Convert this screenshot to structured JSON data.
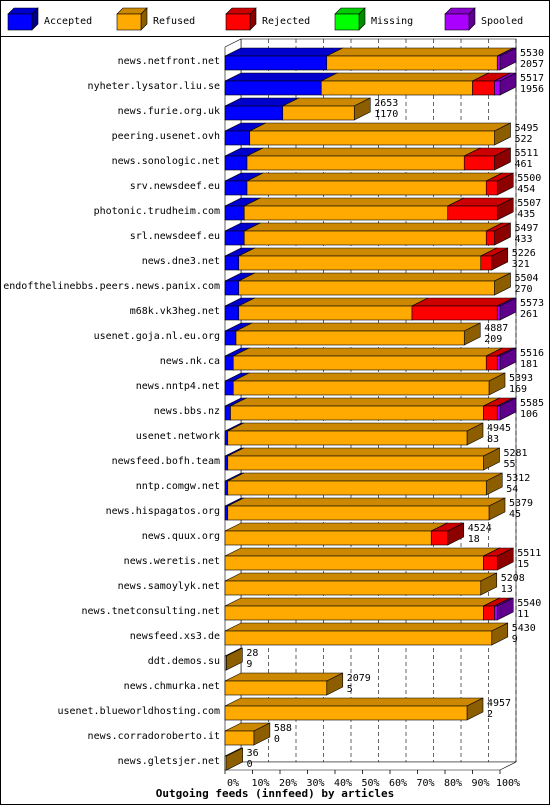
{
  "chart_data": {
    "type": "bar",
    "title": "Outgoing feeds (innfeed) by articles",
    "legend": [
      {
        "name": "Accepted",
        "color": "#0000ff"
      },
      {
        "name": "Refused",
        "color": "#ffaa00"
      },
      {
        "name": "Rejected",
        "color": "#ff0000"
      },
      {
        "name": "Missing",
        "color": "#00ff00"
      },
      {
        "name": "Spooled",
        "color": "#aa00ff"
      }
    ],
    "x_ticks": [
      "0%",
      "10%",
      "20%",
      "30%",
      "40%",
      "50%",
      "60%",
      "70%",
      "80%",
      "90%",
      "100%"
    ],
    "rows": [
      {
        "name": "news.netfront.net",
        "offered": "5530",
        "accepted": "2057",
        "acc": 37,
        "ref": 62,
        "rej": 0,
        "spo": 1
      },
      {
        "name": "nyheter.lysator.liu.se",
        "offered": "5517",
        "accepted": "1956",
        "acc": 35,
        "ref": 55,
        "rej": 8,
        "spo": 2
      },
      {
        "name": "news.furie.org.uk",
        "offered": "2653",
        "accepted": "1170",
        "acc": 21,
        "ref": 26,
        "rej": 0,
        "spo": 0
      },
      {
        "name": "peering.usenet.ovh",
        "offered": "5495",
        "accepted": "522",
        "acc": 9,
        "ref": 89,
        "rej": 0,
        "spo": 0
      },
      {
        "name": "news.sonologic.net",
        "offered": "5511",
        "accepted": "461",
        "acc": 8,
        "ref": 79,
        "rej": 11,
        "spo": 0
      },
      {
        "name": "srv.newsdeef.eu",
        "offered": "5500",
        "accepted": "454",
        "acc": 8,
        "ref": 87,
        "rej": 4,
        "spo": 0
      },
      {
        "name": "photonic.trudheim.com",
        "offered": "5507",
        "accepted": "435",
        "acc": 7,
        "ref": 74,
        "rej": 18,
        "spo": 0
      },
      {
        "name": "srl.newsdeef.eu",
        "offered": "5497",
        "accepted": "433",
        "acc": 7,
        "ref": 88,
        "rej": 3,
        "spo": 0
      },
      {
        "name": "news.dne3.net",
        "offered": "5226",
        "accepted": "321",
        "acc": 5,
        "ref": 88,
        "rej": 4,
        "spo": 0
      },
      {
        "name": "endofthelinebbs.peers.news.panix.com",
        "offered": "5504",
        "accepted": "270",
        "acc": 5,
        "ref": 93,
        "rej": 0,
        "spo": 0
      },
      {
        "name": "m68k.vk3heg.net",
        "offered": "5573",
        "accepted": "261",
        "acc": 5,
        "ref": 63,
        "rej": 31,
        "spo": 1
      },
      {
        "name": "usenet.goja.nl.eu.org",
        "offered": "4887",
        "accepted": "209",
        "acc": 4,
        "ref": 83,
        "rej": 0,
        "spo": 0
      },
      {
        "name": "news.nk.ca",
        "offered": "5516",
        "accepted": "181",
        "acc": 3,
        "ref": 92,
        "rej": 4,
        "spo": 1
      },
      {
        "name": "news.nntp4.net",
        "offered": "5393",
        "accepted": "169",
        "acc": 3,
        "ref": 93,
        "rej": 0,
        "spo": 0
      },
      {
        "name": "news.bbs.nz",
        "offered": "5585",
        "accepted": "106",
        "acc": 2,
        "ref": 92,
        "rej": 5,
        "spo": 1
      },
      {
        "name": "usenet.network",
        "offered": "4945",
        "accepted": "83",
        "acc": 1,
        "ref": 87,
        "rej": 0,
        "spo": 0
      },
      {
        "name": "newsfeed.bofh.team",
        "offered": "5281",
        "accepted": "55",
        "acc": 1,
        "ref": 93,
        "rej": 0,
        "spo": 0
      },
      {
        "name": "nntp.comgw.net",
        "offered": "5312",
        "accepted": "54",
        "acc": 1,
        "ref": 94,
        "rej": 0,
        "spo": 0
      },
      {
        "name": "news.hispagatos.org",
        "offered": "5379",
        "accepted": "45",
        "acc": 1,
        "ref": 95,
        "rej": 0,
        "spo": 0
      },
      {
        "name": "news.quux.org",
        "offered": "4524",
        "accepted": "18",
        "acc": 0,
        "ref": 75,
        "rej": 6,
        "spo": 0
      },
      {
        "name": "news.weretis.net",
        "offered": "5511",
        "accepted": "15",
        "acc": 0,
        "ref": 94,
        "rej": 5,
        "spo": 0
      },
      {
        "name": "news.samoylyk.net",
        "offered": "5208",
        "accepted": "13",
        "acc": 0,
        "ref": 93,
        "rej": 0,
        "spo": 0
      },
      {
        "name": "news.tnetconsulting.net",
        "offered": "5540",
        "accepted": "11",
        "acc": 0,
        "ref": 94,
        "rej": 4,
        "spo": 1
      },
      {
        "name": "newsfeed.xs3.de",
        "offered": "5430",
        "accepted": "9",
        "acc": 0,
        "ref": 97,
        "rej": 0,
        "spo": 0
      },
      {
        "name": "ddt.demos.su",
        "offered": "28",
        "accepted": "9",
        "acc": 0,
        "ref": 0.5,
        "rej": 0,
        "spo": 0
      },
      {
        "name": "news.chmurka.net",
        "offered": "2079",
        "accepted": "5",
        "acc": 0,
        "ref": 37,
        "rej": 0,
        "spo": 0
      },
      {
        "name": "usenet.blueworldhosting.com",
        "offered": "4957",
        "accepted": "2",
        "acc": 0,
        "ref": 88,
        "rej": 0,
        "spo": 0
      },
      {
        "name": "news.corradoroberto.it",
        "offered": "588",
        "accepted": "0",
        "acc": 0,
        "ref": 10.5,
        "rej": 0,
        "spo": 0
      },
      {
        "name": "news.gletsjer.net",
        "offered": "36",
        "accepted": "0",
        "acc": 0,
        "ref": 0.6,
        "rej": 0,
        "spo": 0
      }
    ]
  }
}
